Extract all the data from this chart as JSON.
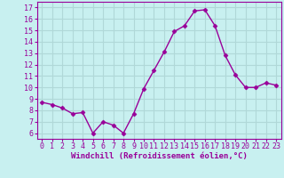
{
  "x": [
    0,
    1,
    2,
    3,
    4,
    5,
    6,
    7,
    8,
    9,
    10,
    11,
    12,
    13,
    14,
    15,
    16,
    17,
    18,
    19,
    20,
    21,
    22,
    23
  ],
  "y": [
    8.7,
    8.5,
    8.2,
    7.7,
    7.8,
    6.0,
    7.0,
    6.7,
    6.0,
    7.7,
    9.9,
    11.5,
    13.1,
    14.9,
    15.4,
    16.7,
    16.8,
    15.4,
    12.8,
    11.1,
    10.0,
    10.0,
    10.4,
    10.2
  ],
  "line_color": "#990099",
  "marker": "D",
  "markersize": 2.5,
  "linewidth": 1.0,
  "xlabel": "Windchill (Refroidissement éolien,°C)",
  "xlabel_fontsize": 6.5,
  "bg_color": "#c8f0f0",
  "grid_color": "#b0d8d8",
  "yticks": [
    6,
    7,
    8,
    9,
    10,
    11,
    12,
    13,
    14,
    15,
    16,
    17
  ],
  "xticks": [
    0,
    1,
    2,
    3,
    4,
    5,
    6,
    7,
    8,
    9,
    10,
    11,
    12,
    13,
    14,
    15,
    16,
    17,
    18,
    19,
    20,
    21,
    22,
    23
  ],
  "ylim": [
    5.5,
    17.5
  ],
  "xlim": [
    -0.5,
    23.5
  ],
  "tick_fontsize": 6.0,
  "spine_color": "#990099"
}
